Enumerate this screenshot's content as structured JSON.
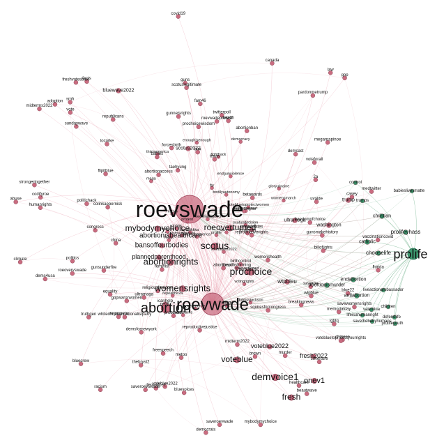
{
  "graph": {
    "colors": {
      "red_node": "#c96c80",
      "red_edge": "#e79aaa",
      "green_node": "#3f9d72",
      "green_edge": "#6fb08a",
      "background": "#ffffff"
    },
    "major_hubs": [
      {
        "id": "roevswade",
        "label": "roevswade",
        "group": "red"
      },
      {
        "id": "roevwade",
        "label": "roevwade",
        "group": "red"
      },
      {
        "id": "prolife",
        "label": "prolife",
        "group": "green"
      }
    ],
    "large_labels": [
      "abortion",
      "scotus",
      "prochoice",
      "womensrights",
      "abortionrights",
      "mybodymychoice",
      "roeoverturned",
      "demvoice1",
      "voteblue",
      "fresh",
      "onev1"
    ],
    "medium_labels": [
      "abortionishealthcare",
      "bansoffourbodies",
      "plannedparenthood",
      "voteblue2022",
      "fresh2022",
      "bluewave2022",
      "wtpbleu",
      "abortionismurder",
      "endabortion",
      "antiabortion",
      "chooselife",
      "prolifeyhass",
      "catholic",
      "christian",
      "trump",
      "washington",
      "ultramaga",
      "scotus2022"
    ],
    "green_nodes": [
      "babieslivesmatte",
      "prolife",
      "prolifeyhass",
      "catholic",
      "chooselife",
      "christian",
      "trumps",
      "control",
      "abortionismurder",
      "endabortion",
      "antiabortion",
      "liveactionambassador",
      "valentina",
      "children",
      "lifeisahumanright",
      "savethebabyhumans",
      "defendlife",
      "prolifeyouth"
    ],
    "red_labels": [
      "betawards",
      "vegaspete",
      "beautwave",
      "uvalde",
      "lgbtq",
      "billoflights",
      "thebryst2",
      "taehyung",
      "icanhelp",
      "thesonsforming",
      "blm",
      "abortionpill",
      "voteforall",
      "sundaywave",
      "doggy",
      "metoo",
      "breakingnews",
      "canada",
      "gop",
      "saveroevswade",
      "savewomensrights",
      "saveroe",
      "saveroevwade",
      "whitechristiannationalistparty",
      "unitedstates",
      "squiresforcongress",
      "feminism",
      "womenshealth",
      "feminist",
      "roeovervswade",
      "coverture",
      "health",
      "birthcontrol",
      "reproductivejustice",
      "murder",
      "racism",
      "healthcare",
      "reproductiverights",
      "politics",
      "equality",
      "roevwadeprotest",
      "freedomofchoice",
      "mybodymychoice",
      "gunsunderfire",
      "gunsmakehistory",
      "myodiritis",
      "brown",
      "twitterpoll",
      "scotuslegitimate",
      "tocorke",
      "vaccinationcovid",
      "colinkaepernick",
      "politichack",
      "meganrapinoe",
      "abuse",
      "covid19",
      "forcesbirth",
      "pardonmetrump",
      "facts",
      "casey",
      "china",
      "chinese",
      "guns",
      "smh",
      "memorialday",
      "freespeech",
      "climate",
      "codifyroe",
      "babies",
      "medtwitter",
      "midterm2022",
      "midterms2022",
      "votebluetoprotectyourrights",
      "freshvotesblue",
      "fam46",
      "blue22",
      "truthgen",
      "prochoicewisdom",
      "vote",
      "republicans",
      "gunnelsrights",
      "religiousfreedom",
      "2a",
      "texas",
      "florida",
      "law",
      "ne08",
      "adoption",
      "congress",
      "abortionaccess",
      "democrats",
      "humanrights",
      "abortionban",
      "gopwarorwomen",
      "bluevoices",
      "strongertogether",
      "bluecrew",
      "demcast",
      "procontrol",
      "voteblue2022",
      "demvoice1",
      "flipitblue",
      "demsfornewyork",
      "dems4usa",
      "ultramaga",
      "wtpblue"
    ],
    "tiny_labels": [
      "endgunviolence",
      "gloryukraine",
      "history",
      "freedom",
      "enoughisenough",
      "scotusdecision",
      "supremecourt",
      "overturnroe",
      "roeoverturned",
      "clarencethomas",
      "prolife",
      "maga",
      "dobbs",
      "dobbsvjackson",
      "wakeupamerica",
      "amerikkka",
      "votebluein2022",
      "votebluetoprotectwomen",
      "womansrights",
      "repealthe2a",
      "thisisamerica",
      "resist",
      "fbr",
      "bidenharris",
      "democracy",
      "votingrights",
      "fightback",
      "bodilyautonomy",
      "saveroe",
      "womensmarch",
      "protest",
      "freedomofspeech"
    ]
  }
}
